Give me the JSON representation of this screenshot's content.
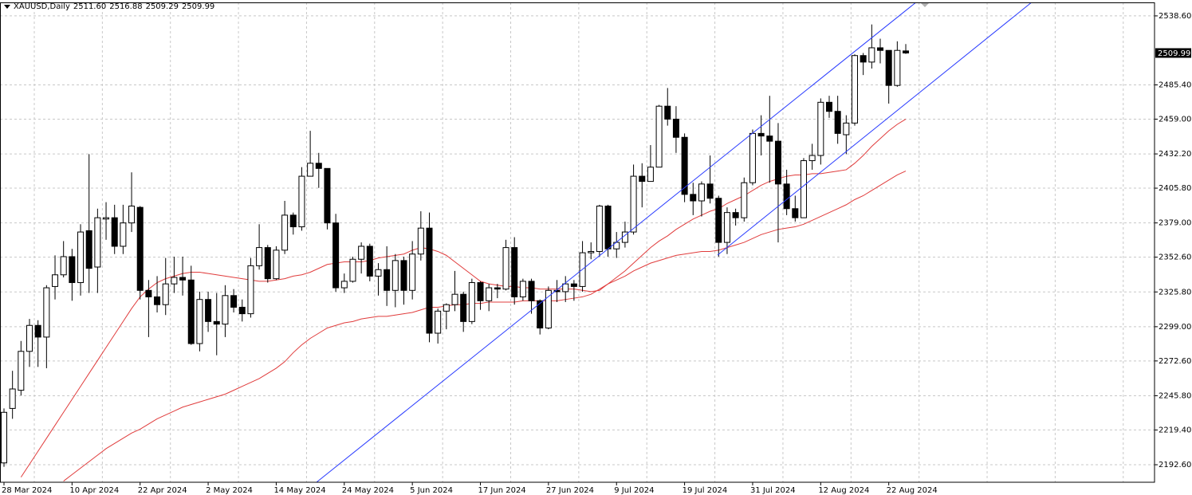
{
  "chart_data": {
    "type": "candlestick",
    "symbol": "XAUUSD,Daily",
    "header_values": [
      "2511.60",
      "2516.88",
      "2509.29",
      "2509.99"
    ],
    "categories": [
      "28 Mar 2024",
      null,
      null,
      null,
      null,
      null,
      null,
      null,
      "10 Apr 2024",
      null,
      null,
      null,
      null,
      null,
      null,
      null,
      "22 Apr 2024",
      null,
      null,
      null,
      null,
      null,
      null,
      null,
      "2 May 2024",
      null,
      null,
      null,
      null,
      null,
      null,
      null,
      "14 May 2024",
      null,
      null,
      null,
      null,
      null,
      null,
      null,
      "24 May 2024",
      null,
      null,
      null,
      null,
      null,
      null,
      null,
      "5 Jun 2024",
      null,
      null,
      null,
      null,
      null,
      null,
      null,
      "17 Jun 2024",
      null,
      null,
      null,
      null,
      null,
      null,
      null,
      "27 Jun 2024",
      null,
      null,
      null,
      null,
      null,
      null,
      null,
      "9 Jul 2024",
      null,
      null,
      null,
      null,
      null,
      null,
      null,
      "19 Jul 2024",
      null,
      null,
      null,
      null,
      null,
      null,
      null,
      "31 Jul 2024",
      null,
      null,
      null,
      null,
      null,
      null,
      null,
      "12 Aug 2024",
      null,
      null,
      null,
      null,
      null,
      null,
      null,
      "22 Aug 2024",
      null,
      null
    ],
    "open": [
      2194,
      2236,
      2250,
      2280,
      2300,
      2291,
      2330,
      2339,
      2353,
      2333,
      2373,
      2345,
      2382,
      2383,
      2361,
      2379,
      2391,
      2327,
      2322,
      2316,
      2332,
      2337,
      2335,
      2286,
      2320,
      2303,
      2301,
      2323,
      2314,
      2309,
      2346,
      2360,
      2336,
      2358,
      2385,
      2376,
      2415,
      2425,
      2421,
      2379,
      2329,
      2334,
      2351,
      2361,
      2338,
      2343,
      2327,
      2350,
      2327,
      2355,
      2375,
      2294,
      2311,
      2316,
      2324,
      2303,
      2333,
      2319,
      2329,
      2328,
      2360,
      2322,
      2334,
      2319,
      2298,
      2327,
      2326,
      2332,
      2330,
      2356,
      2357,
      2392,
      2359,
      2364,
      2372,
      2415,
      2411,
      2422,
      2469,
      2459,
      2445,
      2401,
      2396,
      2409,
      2398,
      2364,
      2387,
      2383,
      2410,
      2448,
      2446,
      2442,
      2409,
      2390,
      2383,
      2427,
      2431,
      2472,
      2465,
      2447,
      2456,
      2508,
      2503,
      2514,
      2512,
      2485,
      2511.6
    ],
    "high": [
      2236,
      2265,
      2288,
      2305,
      2304,
      2331,
      2354,
      2365,
      2359,
      2378,
      2432,
      2390,
      2395,
      2393,
      2393,
      2418,
      2392,
      2335,
      2338,
      2352,
      2353,
      2353,
      2346,
      2326,
      2326,
      2325,
      2331,
      2328,
      2320,
      2352,
      2378,
      2362,
      2361,
      2396,
      2387,
      2422,
      2450,
      2433,
      2421,
      2386,
      2340,
      2353,
      2364,
      2363,
      2348,
      2361,
      2355,
      2353,
      2365,
      2388,
      2387,
      2313,
      2317,
      2342,
      2326,
      2336,
      2334,
      2332,
      2332,
      2366,
      2368,
      2336,
      2336,
      2320,
      2330,
      2335,
      2338,
      2335,
      2365,
      2364,
      2393,
      2393,
      2372,
      2380,
      2424,
      2425,
      2439,
      2470,
      2483,
      2469,
      2448,
      2410,
      2411,
      2431,
      2400,
      2391,
      2390,
      2414,
      2451,
      2462,
      2477,
      2456,
      2420,
      2400,
      2429,
      2440,
      2475,
      2477,
      2477,
      2462,
      2509,
      2510,
      2532,
      2521,
      2512,
      2519,
      2516.88
    ],
    "low": [
      2191,
      2228,
      2246,
      2268,
      2268,
      2267,
      2320,
      2337,
      2319,
      2323,
      2325,
      2325,
      2366,
      2355,
      2355,
      2372,
      2320,
      2291,
      2310,
      2308,
      2325,
      2323,
      2285,
      2280,
      2295,
      2277,
      2291,
      2310,
      2303,
      2306,
      2343,
      2333,
      2335,
      2355,
      2370,
      2373,
      2415,
      2406,
      2374,
      2326,
      2325,
      2333,
      2340,
      2334,
      2323,
      2315,
      2314,
      2316,
      2320,
      2350,
      2287,
      2286,
      2297,
      2311,
      2295,
      2301,
      2312,
      2311,
      2321,
      2327,
      2316,
      2319,
      2309,
      2293,
      2297,
      2318,
      2318,
      2319,
      2326,
      2351,
      2353,
      2353,
      2352,
      2360,
      2370,
      2391,
      2411,
      2422,
      2454,
      2433,
      2395,
      2385,
      2384,
      2394,
      2353,
      2355,
      2377,
      2380,
      2408,
      2431,
      2410,
      2364,
      2385,
      2380,
      2383,
      2420,
      2424,
      2460,
      2440,
      2432,
      2454,
      2493,
      2498,
      2502,
      2471,
      2484,
      2509.29
    ],
    "close": [
      2233,
      2251,
      2280,
      2300,
      2291,
      2329,
      2339,
      2353,
      2333,
      2372,
      2344,
      2383,
      2383,
      2361,
      2379,
      2392,
      2327,
      2322,
      2316,
      2332,
      2337,
      2335,
      2286,
      2320,
      2303,
      2301,
      2323,
      2314,
      2309,
      2346,
      2360,
      2336,
      2358,
      2385,
      2376,
      2415,
      2425,
      2421,
      2379,
      2329,
      2334,
      2351,
      2361,
      2338,
      2343,
      2327,
      2350,
      2327,
      2355,
      2375,
      2294,
      2311,
      2316,
      2324,
      2303,
      2333,
      2319,
      2329,
      2328,
      2360,
      2322,
      2334,
      2319,
      2298,
      2327,
      2326,
      2332,
      2330,
      2356,
      2357,
      2392,
      2359,
      2364,
      2372,
      2415,
      2411,
      2422,
      2469,
      2459,
      2445,
      2401,
      2396,
      2409,
      2398,
      2364,
      2387,
      2383,
      2410,
      2448,
      2446,
      2442,
      2409,
      2390,
      2383,
      2427,
      2431,
      2472,
      2465,
      2448,
      2456,
      2508,
      2503,
      2514,
      2512,
      2485,
      2512,
      2509.99
    ],
    "moving_averages": [
      {
        "color": "#e03c3c",
        "values": [
          null,
          null,
          2183,
          2193,
          2203,
          2213,
          2223,
          2233,
          2243,
          2253,
          2263,
          2273,
          2283,
          2293,
          2303,
          2313,
          2322,
          2328,
          2333,
          2336,
          2338,
          2340,
          2341,
          2341,
          2340,
          2339,
          2338,
          2337,
          2336,
          2335,
          2334,
          2334,
          2335,
          2336,
          2338,
          2339,
          2341,
          2344,
          2347,
          2348,
          2349,
          2349,
          2349,
          2350,
          2352,
          2353,
          2354,
          2355,
          2358,
          2360,
          2359,
          2357,
          2354,
          2349,
          2344,
          2339,
          2334,
          2332,
          2331,
          2330,
          2330,
          2329,
          2329,
          2328,
          2328,
          2328,
          2328,
          2328,
          2327,
          2326,
          2327,
          2332,
          2337,
          2342,
          2348,
          2354,
          2360,
          2365,
          2369,
          2374,
          2378,
          2382,
          2385,
          2388,
          2390,
          2394,
          2397,
          2400,
          2404,
          2408,
          2411,
          2413,
          2415,
          2416,
          2416,
          2417,
          2417,
          2418,
          2419,
          2420,
          2425,
          2431,
          2438,
          2444,
          2450,
          2455,
          2459
        ]
      },
      {
        "color": "#e03c3c",
        "values": [
          null,
          null,
          null,
          null,
          null,
          null,
          null,
          2180,
          2185,
          2190,
          2195,
          2200,
          2205,
          2209,
          2213,
          2217,
          2220,
          2224,
          2228,
          2231,
          2234,
          2237,
          2239,
          2241,
          2243,
          2245,
          2247,
          2250,
          2253,
          2256,
          2259,
          2263,
          2267,
          2272,
          2279,
          2285,
          2290,
          2294,
          2298,
          2300,
          2302,
          2303,
          2305,
          2306,
          2307,
          2307,
          2308,
          2309,
          2310,
          2312,
          2314,
          2314,
          2315,
          2316,
          2316,
          2317,
          2317,
          2318,
          2318,
          2318,
          2318,
          2319,
          2319,
          2319,
          2319,
          2319,
          2320,
          2321,
          2322,
          2324,
          2328,
          2332,
          2335,
          2338,
          2342,
          2345,
          2348,
          2350,
          2352,
          2354,
          2355,
          2356,
          2357,
          2357,
          2358,
          2360,
          2362,
          2364,
          2367,
          2370,
          2372,
          2374,
          2375,
          2376,
          2378,
          2381,
          2384,
          2387,
          2390,
          2393,
          2397,
          2400,
          2404,
          2408,
          2412,
          2416,
          2419
        ]
      }
    ],
    "up_color": "#ffffff",
    "down_color": "#000000",
    "current_price": {
      "value": 2509.99,
      "label": "2509.99"
    },
    "ylim": [
      2179.1,
      2549.0
    ],
    "yticks": [
      {
        "value": 2538.6,
        "label": "2538.60"
      },
      {
        "value": 2485.4,
        "label": "2485.40"
      },
      {
        "value": 2459.0,
        "label": "2459.00"
      },
      {
        "value": 2432.2,
        "label": "2432.20"
      },
      {
        "value": 2405.8,
        "label": "2405.80"
      },
      {
        "value": 2379.0,
        "label": "2379.00"
      },
      {
        "value": 2352.6,
        "label": "2352.60"
      },
      {
        "value": 2325.8,
        "label": "2325.80"
      },
      {
        "value": 2299.0,
        "label": "2299.00"
      },
      {
        "value": 2272.6,
        "label": "2272.60"
      },
      {
        "value": 2245.8,
        "label": "2245.80"
      },
      {
        "value": 2219.4,
        "label": "2219.40"
      },
      {
        "value": 2192.6,
        "label": "2192.60"
      }
    ],
    "grid": true
  }
}
